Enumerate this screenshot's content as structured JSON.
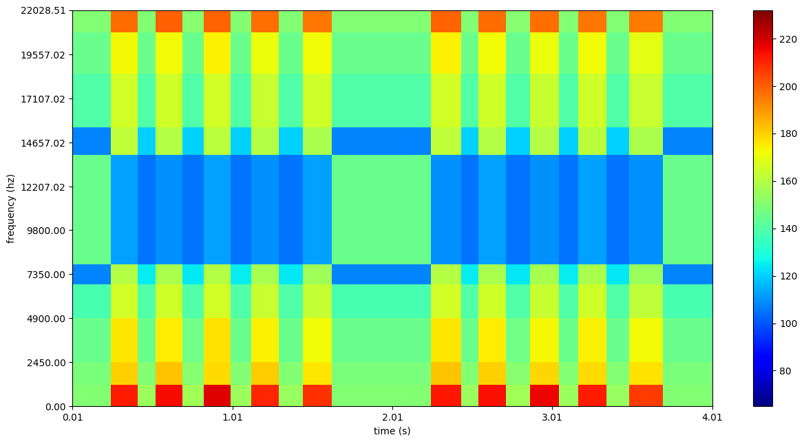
{
  "chart_data": {
    "type": "heatmap",
    "x_label": "time (s)",
    "y_label": "frequency (hz)",
    "color": "jet",
    "time_edges": [
      0.01,
      0.25,
      0.42,
      0.53,
      0.7,
      0.83,
      1.0,
      1.13,
      1.3,
      1.45,
      1.63,
      2.25,
      2.44,
      2.55,
      2.72,
      2.87,
      3.05,
      3.17,
      3.35,
      3.49,
      3.7,
      4.01
    ],
    "frequency_edges": [
      0,
      1200,
      2450,
      4900,
      6800,
      7900,
      14000,
      15500,
      18500,
      20800,
      22028.51
    ],
    "cells": [
      [
        150,
        212,
        155,
        215,
        156,
        218,
        155,
        210,
        154,
        208,
        150,
        213,
        155,
        214,
        156,
        216,
        155,
        212,
        154,
        206,
        150
      ],
      [
        148,
        180,
        150,
        182,
        151,
        178,
        150,
        181,
        150,
        176,
        148,
        182,
        150,
        180,
        151,
        179,
        150,
        178,
        150,
        177,
        148
      ],
      [
        145,
        176,
        145,
        175,
        146,
        177,
        145,
        174,
        145,
        172,
        145,
        176,
        145,
        175,
        146,
        173,
        145,
        174,
        145,
        172,
        145
      ],
      [
        138,
        166,
        140,
        165,
        140,
        166,
        140,
        164,
        140,
        163,
        138,
        166,
        140,
        165,
        140,
        164,
        140,
        165,
        140,
        162,
        138
      ],
      [
        108,
        160,
        125,
        158,
        124,
        160,
        125,
        157,
        124,
        156,
        108,
        160,
        125,
        158,
        124,
        157,
        125,
        158,
        124,
        155,
        108
      ],
      [
        145,
        112,
        105,
        110,
        105,
        112,
        105,
        110,
        105,
        112,
        145,
        110,
        105,
        112,
        105,
        110,
        105,
        112,
        105,
        110,
        145
      ],
      [
        108,
        162,
        120,
        160,
        120,
        161,
        120,
        160,
        120,
        158,
        108,
        162,
        120,
        160,
        120,
        160,
        120,
        161,
        120,
        158,
        108
      ],
      [
        140,
        166,
        140,
        165,
        140,
        166,
        140,
        164,
        140,
        165,
        140,
        166,
        140,
        165,
        140,
        164,
        140,
        165,
        140,
        164,
        140
      ],
      [
        145,
        173,
        145,
        172,
        145,
        174,
        145,
        171,
        145,
        172,
        145,
        174,
        145,
        172,
        145,
        171,
        145,
        172,
        145,
        170,
        145
      ],
      [
        150,
        198,
        150,
        200,
        151,
        199,
        150,
        197,
        150,
        196,
        150,
        199,
        150,
        198,
        151,
        197,
        150,
        196,
        150,
        195,
        150
      ]
    ],
    "xlim": [
      0.01,
      4.01
    ],
    "xticks": [
      0.01,
      1.01,
      2.01,
      3.01,
      4.01
    ],
    "ylim": [
      0,
      22028.51
    ],
    "yticks": [
      {
        "value": 0,
        "label": "0.00"
      },
      {
        "value": 2450,
        "label": "2450.00"
      },
      {
        "value": 4900,
        "label": "4900.00"
      },
      {
        "value": 7350,
        "label": "7350.00"
      },
      {
        "value": 9800,
        "label": "9800.00"
      },
      {
        "value": 12207.02,
        "label": "12207.02"
      },
      {
        "value": 14657.02,
        "label": "14657.02"
      },
      {
        "value": 17107.02,
        "label": "17107.02"
      },
      {
        "value": 19557.02,
        "label": "19557.02"
      },
      {
        "value": 22028.51,
        "label": "22028.51"
      }
    ],
    "color_range": [
      65,
      232
    ],
    "color_ticks": [
      80,
      100,
      120,
      140,
      160,
      180,
      200,
      220
    ]
  }
}
